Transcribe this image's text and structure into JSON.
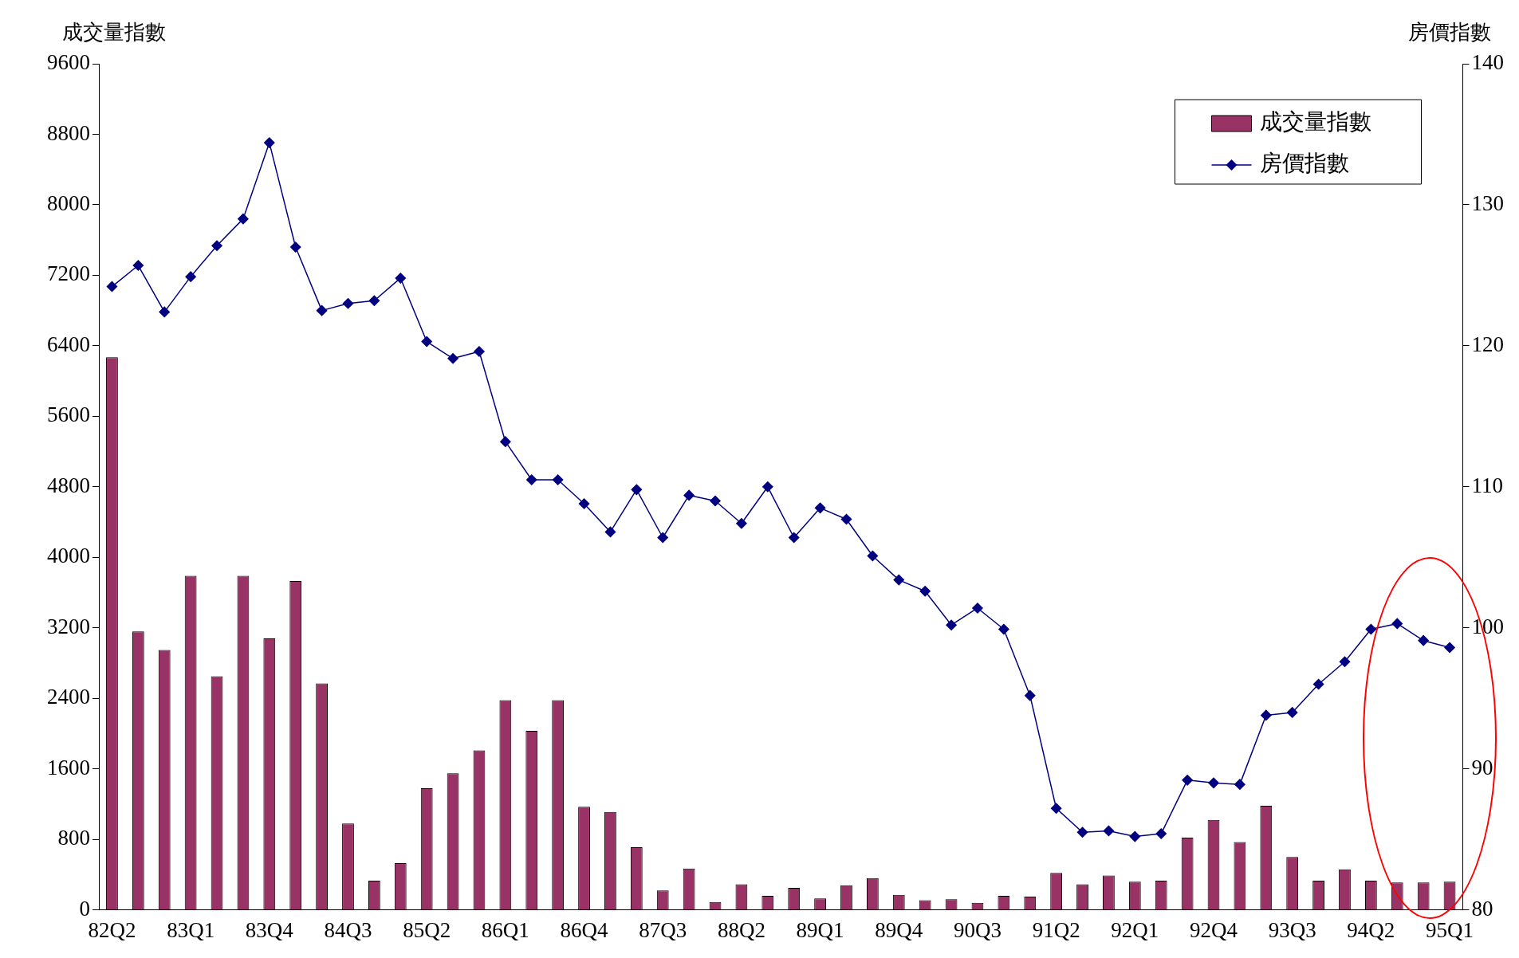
{
  "chart_data": {
    "type": "bar",
    "ylabel": "成交量指數",
    "y2label": "房價指數",
    "categories": [
      "82Q2",
      null,
      null,
      "83Q1",
      null,
      null,
      "83Q4",
      null,
      null,
      "84Q3",
      null,
      null,
      "85Q2",
      null,
      null,
      "86Q1",
      null,
      null,
      "86Q4",
      null,
      null,
      "87Q3",
      null,
      null,
      "88Q2",
      null,
      null,
      "89Q1",
      null,
      null,
      "89Q4",
      null,
      null,
      "90Q3",
      null,
      null,
      "91Q2",
      null,
      null,
      "92Q1",
      null,
      null,
      "92Q4",
      null,
      null,
      "93Q3",
      null,
      null,
      "94Q2",
      null,
      null,
      "95Q1"
    ],
    "series": [
      {
        "name": "成交量指數",
        "color": "#993366",
        "values": [
          6270,
          3160,
          2950,
          3790,
          2650,
          3790,
          3080,
          3730,
          2570,
          980,
          330,
          530,
          1380,
          1550,
          1810,
          2380,
          2030,
          2380,
          1170,
          1110,
          710,
          220,
          470,
          90,
          290,
          160,
          250,
          130,
          280,
          360,
          170,
          110,
          120,
          80,
          160,
          150,
          420,
          290,
          390,
          320,
          330,
          820,
          1020,
          770,
          1180,
          600,
          330,
          460,
          330,
          310,
          310,
          320
        ]
      },
      {
        "name": "房價指數",
        "type": "line",
        "axis": "y2",
        "color": "#000080",
        "marker": "diamond",
        "values": [
          124.2,
          125.7,
          122.4,
          124.9,
          127.1,
          129.0,
          134.4,
          127.0,
          122.5,
          123.0,
          123.2,
          124.8,
          120.3,
          119.1,
          119.6,
          113.2,
          110.5,
          110.5,
          108.8,
          106.8,
          109.8,
          106.4,
          109.4,
          109.0,
          107.4,
          110.0,
          106.4,
          108.5,
          107.7,
          105.1,
          103.4,
          102.6,
          100.2,
          101.4,
          99.9,
          95.2,
          87.2,
          85.5,
          85.6,
          85.2,
          85.4,
          89.2,
          89.0,
          88.9,
          93.8,
          94.0,
          96.0,
          97.6,
          99.9,
          100.3,
          99.1,
          98.6
        ]
      }
    ],
    "ylim": [
      0,
      9600
    ],
    "yticks": [
      0,
      800,
      1600,
      2400,
      3200,
      4000,
      4800,
      5600,
      6400,
      7200,
      8000,
      8800,
      9600
    ],
    "y2lim": [
      80,
      140
    ],
    "y2ticks": [
      80,
      90,
      100,
      110,
      120,
      130,
      140
    ],
    "legend": "top right"
  }
}
